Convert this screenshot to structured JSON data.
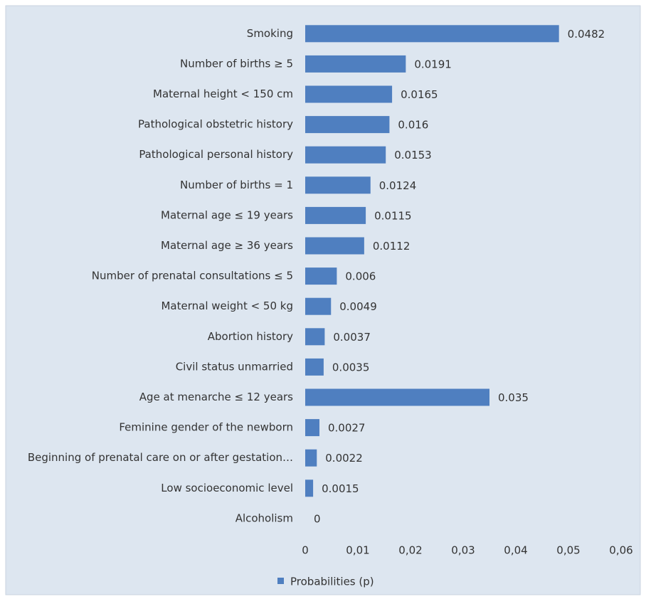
{
  "chart_data": {
    "type": "bar",
    "orientation": "horizontal",
    "categories": [
      "Smoking",
      "Number of births ≥ 5",
      "Maternal height < 150 cm",
      "Pathological obstetric history",
      "Pathological personal history",
      "Number of births = 1",
      "Maternal age ≤ 19 years",
      "Maternal age ≥ 36 years",
      "Number of prenatal consultations  ≤ 5",
      "Maternal weight < 50 kg",
      "Abortion history",
      "Civil status unmarried",
      "Age at menarche ≤ 12 years",
      "Feminine gender of the newborn",
      "Beginning of prenatal care on or after gestation…",
      "Low socioeconomic level",
      "Alcoholism"
    ],
    "series": [
      {
        "name": "Probabilities (p)",
        "color": "#4f7fc0",
        "values": [
          0.0482,
          0.0191,
          0.0165,
          0.016,
          0.0153,
          0.0124,
          0.0115,
          0.0112,
          0.006,
          0.0049,
          0.0037,
          0.0035,
          0.035,
          0.0027,
          0.0022,
          0.0015,
          0
        ]
      }
    ],
    "xlim": [
      0,
      0.06
    ],
    "xticks": [
      0,
      {
        "value": 0.01,
        "label": "0,01"
      },
      {
        "value": 0.02,
        "label": "0,02"
      },
      {
        "value": 0.03,
        "label": "0,03"
      },
      {
        "value": 0.04,
        "label": "0,04"
      },
      {
        "value": 0.05,
        "label": "0,05"
      },
      {
        "value": 0.06,
        "label": "0,06"
      }
    ],
    "grid": false,
    "legend": "bottom"
  }
}
